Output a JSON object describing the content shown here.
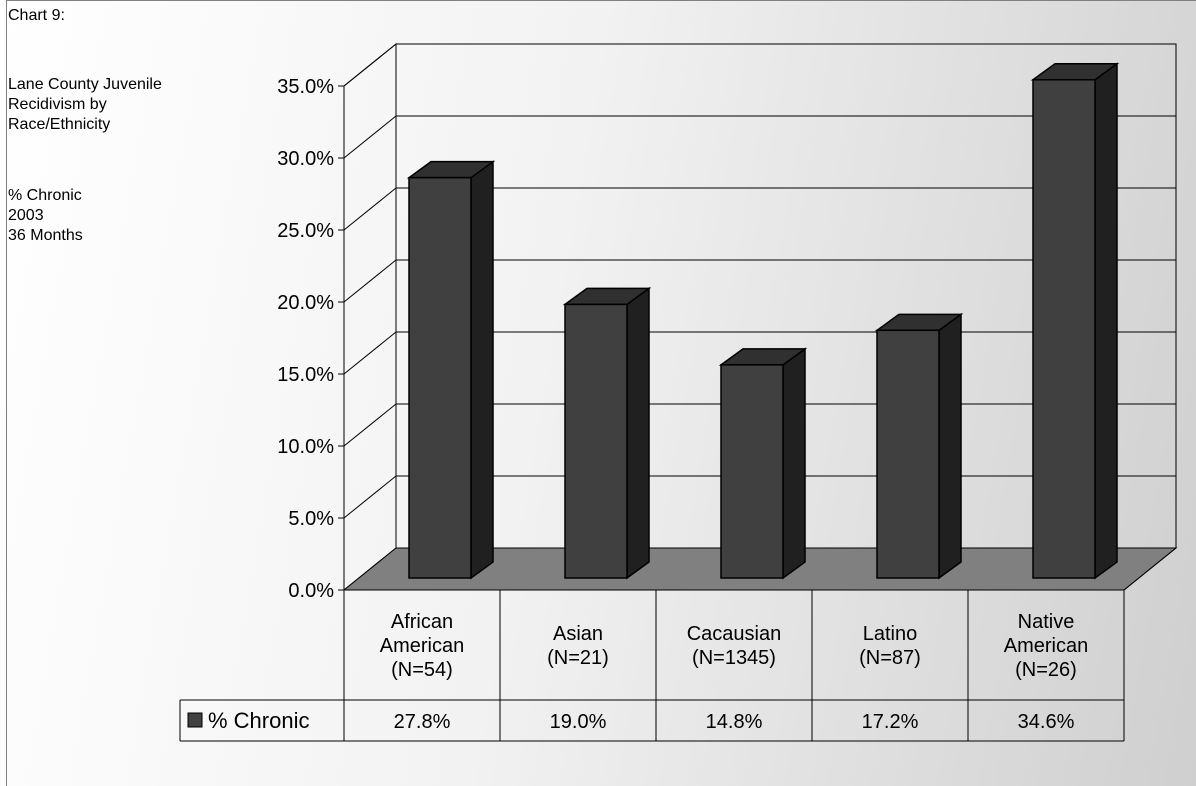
{
  "caption": {
    "chart_number": "Chart 9:",
    "title_lines": "Lane County Juvenile\nRecidivism by\nRace/Ethnicity",
    "subtitle_lines": "% Chronic\n2003\n36 Months"
  },
  "chart_data": {
    "type": "bar",
    "title": "Lane County Juvenile Recidivism by Race/Ethnicity",
    "subtitle": "% Chronic 2003 36 Months",
    "categories": [
      [
        "African",
        "American",
        "(N=54)"
      ],
      [
        "Asian",
        "(N=21)"
      ],
      [
        "Cacausian",
        "(N=1345)"
      ],
      [
        "Latino",
        "(N=87)"
      ],
      [
        "Native",
        "American",
        "(N=26)"
      ]
    ],
    "series": [
      {
        "name": "% Chronic",
        "values": [
          27.8,
          19.0,
          14.8,
          17.2,
          34.6
        ],
        "color": "#404040"
      }
    ],
    "value_labels": [
      "27.8%",
      "19.0%",
      "14.8%",
      "17.2%",
      "34.6%"
    ],
    "ylim": [
      0,
      35
    ],
    "yticks": [
      "0.0%",
      "5.0%",
      "10.0%",
      "15.0%",
      "20.0%",
      "25.0%",
      "30.0%",
      "35.0%"
    ],
    "grid": true,
    "three_d": true,
    "legend": "data-table",
    "floor_color": "#808080",
    "bar_side_color": "#202020",
    "bar_top_color": "#303030"
  }
}
